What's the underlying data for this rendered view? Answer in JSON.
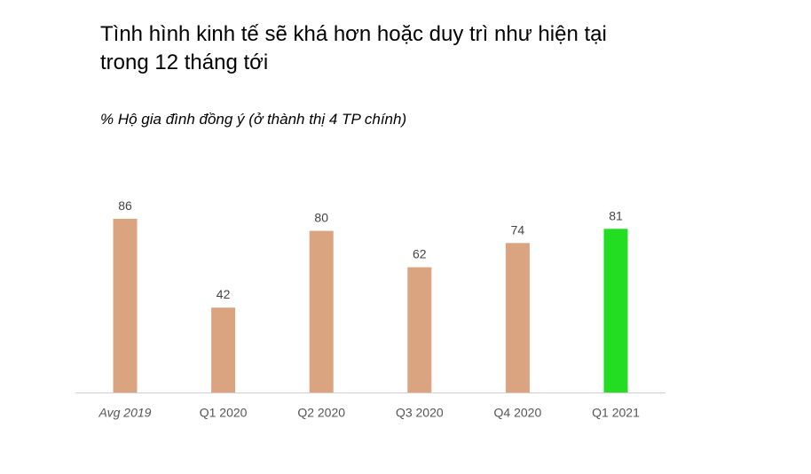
{
  "chart_data": {
    "type": "bar",
    "title_lines": [
      "Tình hình kinh tế sẽ khá hơn hoặc duy trì như hiện tại",
      "trong 12 tháng tới"
    ],
    "subtitle": "% Hộ gia đình đồng ý (ở thành thị 4 TP chính)",
    "categories": [
      "Avg 2019",
      "Q1 2020",
      "Q2 2020",
      "Q3 2020",
      "Q4 2020",
      "Q1 2021"
    ],
    "values": [
      86,
      42,
      80,
      62,
      74,
      81
    ],
    "colors": [
      "#d9a47f",
      "#d9a47f",
      "#d9a47f",
      "#d9a47f",
      "#d9a47f",
      "#22dd22"
    ]
  }
}
